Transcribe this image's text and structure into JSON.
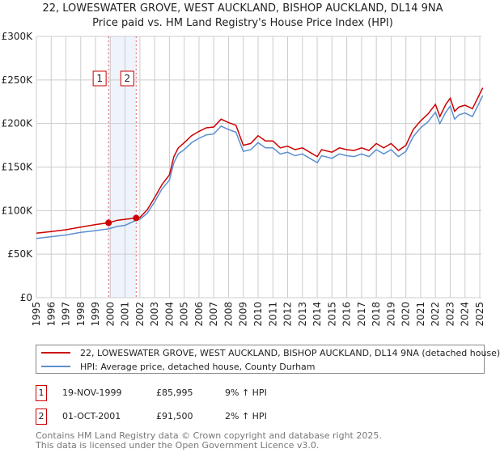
{
  "chart_data": {
    "type": "line",
    "title": "22, LOWESWATER GROVE, WEST AUCKLAND, BISHOP AUCKLAND, DL14 9NA",
    "subtitle": "Price paid vs. HM Land Registry's House Price Index (HPI)",
    "xlim": [
      1995,
      2025.3
    ],
    "ylim": [
      0,
      300000
    ],
    "grid": true,
    "x_ticks": [
      "1995",
      "1996",
      "1997",
      "1998",
      "1999",
      "2000",
      "2001",
      "2002",
      "2003",
      "2004",
      "2005",
      "2006",
      "2007",
      "2008",
      "2009",
      "2010",
      "2011",
      "2012",
      "2013",
      "2014",
      "2015",
      "2016",
      "2017",
      "2018",
      "2019",
      "2020",
      "2021",
      "2022",
      "2023",
      "2024",
      "2025"
    ],
    "y_ticks": [
      {
        "v": 0,
        "label": "£0"
      },
      {
        "v": 50000,
        "label": "£50K"
      },
      {
        "v": 100000,
        "label": "£100K"
      },
      {
        "v": 150000,
        "label": "£150K"
      },
      {
        "v": 200000,
        "label": "£200K"
      },
      {
        "v": 250000,
        "label": "£250K"
      },
      {
        "v": 300000,
        "label": "£300K"
      }
    ],
    "x": [
      1995,
      1996,
      1997,
      1998,
      1999,
      1999.9,
      2000.5,
      2001,
      2001.75,
      2002,
      2002.5,
      2003,
      2003.5,
      2004,
      2004.3,
      2004.6,
      2005,
      2005.5,
      2006,
      2006.5,
      2007,
      2007.5,
      2008,
      2008.5,
      2009,
      2009.5,
      2010,
      2010.5,
      2011,
      2011.5,
      2012,
      2012.5,
      2013,
      2013.5,
      2014,
      2014.3,
      2015,
      2015.5,
      2016,
      2016.5,
      2017,
      2017.5,
      2018,
      2018.5,
      2019,
      2019.5,
      2020,
      2020.5,
      2021,
      2021.5,
      2022,
      2022.3,
      2022.7,
      2023,
      2023.3,
      2023.6,
      2024,
      2024.5,
      2025,
      2025.2
    ],
    "series": [
      {
        "name": "22, LOWESWATER GROVE, WEST AUCKLAND, BISHOP AUCKLAND, DL14 9NA (detached house)",
        "color": "#cc0000",
        "values": [
          74000,
          76000,
          78000,
          81000,
          84000,
          86000,
          89000,
          90000,
          91500,
          92000,
          101000,
          115000,
          130000,
          141000,
          162000,
          172000,
          178000,
          186000,
          191000,
          195000,
          196000,
          205000,
          201000,
          198000,
          175000,
          177000,
          186000,
          180000,
          180000,
          172000,
          174000,
          170000,
          172000,
          167000,
          162000,
          170000,
          167000,
          172000,
          170000,
          169000,
          172000,
          169000,
          177000,
          172000,
          177000,
          169000,
          175000,
          193000,
          203000,
          211000,
          222000,
          208000,
          222000,
          229000,
          214000,
          219000,
          221000,
          217000,
          234000,
          241000
        ]
      },
      {
        "name": "HPI: Average price, detached house, County Durham",
        "color": "#5b8fd0",
        "values": [
          68000,
          70000,
          72000,
          75000,
          77000,
          79000,
          82000,
          83000,
          89000,
          90000,
          97000,
          110000,
          125000,
          135000,
          155000,
          165000,
          170000,
          178000,
          183000,
          187000,
          188000,
          197000,
          193000,
          190000,
          168000,
          170000,
          178000,
          172000,
          172000,
          165000,
          167000,
          163000,
          165000,
          160000,
          155000,
          163000,
          160000,
          165000,
          163000,
          162000,
          165000,
          162000,
          170000,
          165000,
          170000,
          162000,
          168000,
          185000,
          195000,
          202000,
          213000,
          200000,
          213000,
          220000,
          205000,
          210000,
          212000,
          208000,
          225000,
          232000
        ]
      }
    ],
    "sales": [
      {
        "id": "1",
        "x": 1999.88,
        "price": 85995
      },
      {
        "id": "2",
        "x": 2001.75,
        "price": 91500
      }
    ]
  },
  "legend": {
    "property": "22, LOWESWATER GROVE, WEST AUCKLAND, BISHOP AUCKLAND, DL14 9NA (detached house)",
    "hpi": "HPI: Average price, detached house, County Durham"
  },
  "transactions": [
    {
      "id": "1",
      "date": "19-NOV-1999",
      "price": "£85,995",
      "delta": "9% ↑ HPI"
    },
    {
      "id": "2",
      "date": "01-OCT-2001",
      "price": "£91,500",
      "delta": "2% ↑ HPI"
    }
  ],
  "footer": {
    "line1": "Contains HM Land Registry data © Crown copyright and database right 2025.",
    "line2": "This data is licensed under the Open Government Licence v3.0."
  }
}
